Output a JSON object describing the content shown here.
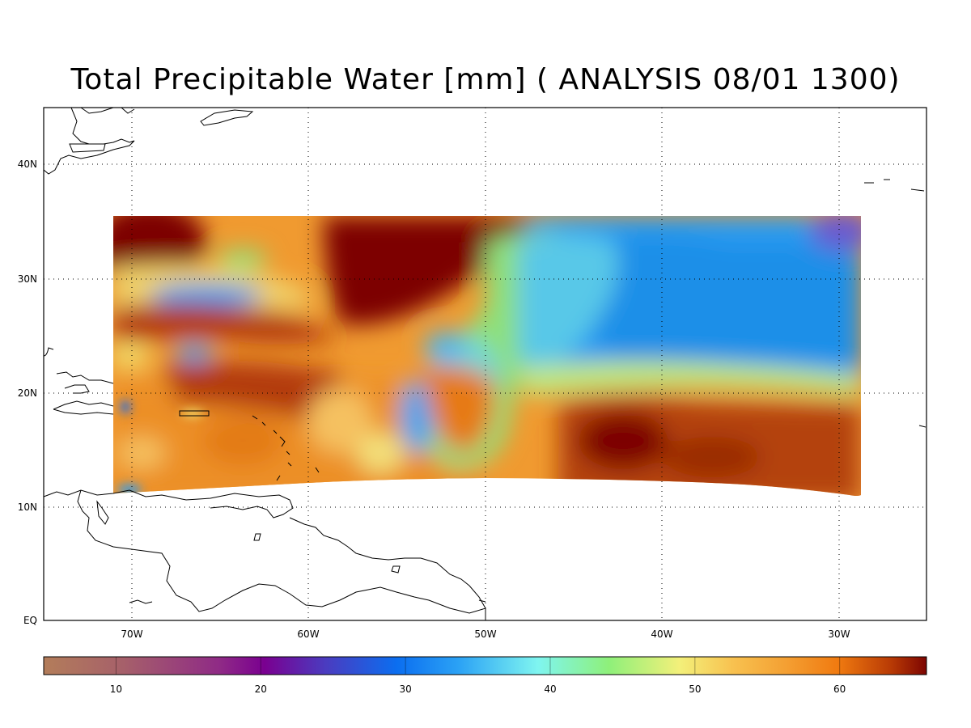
{
  "title": "Total Precipitable Water [mm]  ( ANALYSIS 08/01 1300)",
  "map": {
    "lat_labels": [
      "40N",
      "30N",
      "20N",
      "10N",
      "EQ"
    ],
    "lon_labels": [
      "70W",
      "60W",
      "50W",
      "40W",
      "30W"
    ],
    "lon_range": [
      -75,
      -25
    ],
    "lat_range": [
      0,
      45
    ],
    "grid": "dotted",
    "field": "precipitable water (mm)"
  },
  "colorbar": {
    "min": 5,
    "max": 66,
    "tick_labels": [
      "10",
      "20",
      "30",
      "40",
      "50",
      "60"
    ],
    "ticks": [
      10,
      20,
      30,
      40,
      50,
      60
    ],
    "colors": [
      "#b37d5a",
      "#a6606a",
      "#8f2a86",
      "#7a0090",
      "#4a3cc0",
      "#0b6ef0",
      "#2ba2f5",
      "#7ff5f0",
      "#8ef07a",
      "#f3f07a",
      "#f8c250",
      "#f4a033",
      "#f07a10",
      "#b83a05",
      "#7d0502"
    ]
  }
}
